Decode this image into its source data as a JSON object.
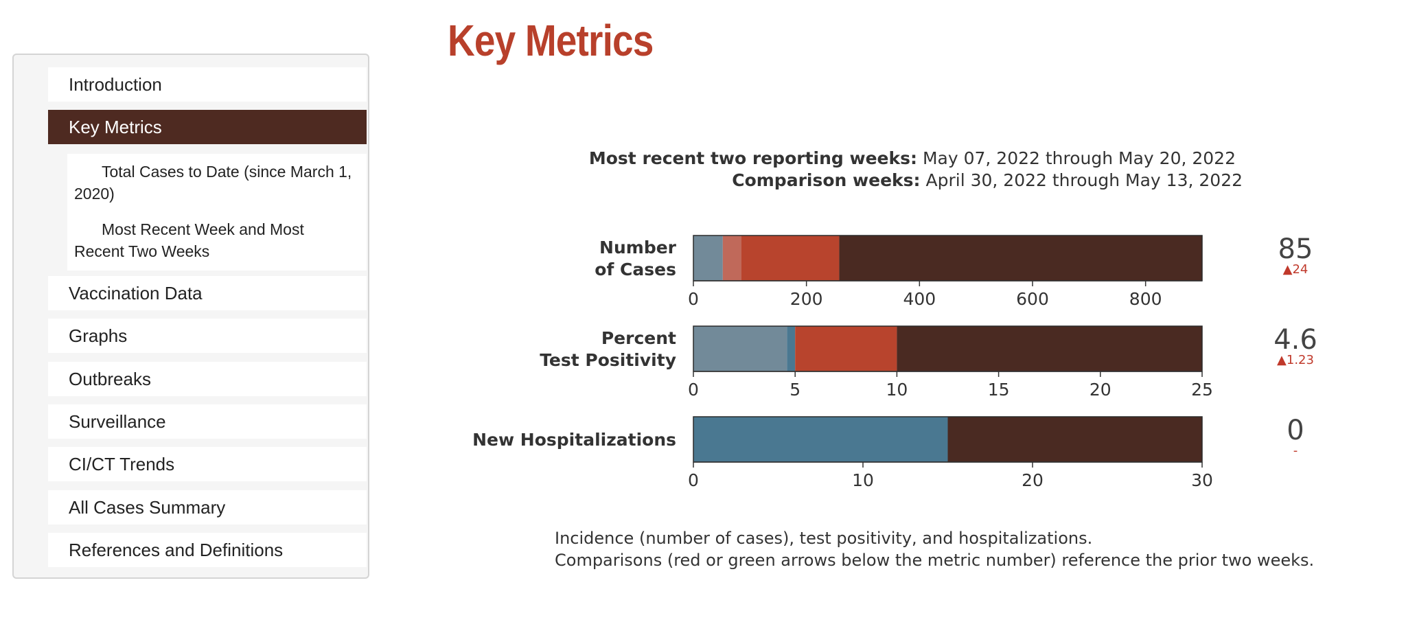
{
  "sidebar": {
    "items": [
      {
        "label": "Introduction"
      },
      {
        "label": "Key Metrics",
        "active": true
      },
      {
        "label": "Vaccination Data"
      },
      {
        "label": "Graphs"
      },
      {
        "label": "Outbreaks"
      },
      {
        "label": "Surveillance"
      },
      {
        "label": "CI/CT Trends"
      },
      {
        "label": "All Cases Summary"
      },
      {
        "label": "References and Definitions"
      }
    ],
    "subitems": [
      {
        "line1": "Total Cases to Date (since March 1,",
        "line2": "2020)"
      },
      {
        "line1": "Most Recent Week and Most",
        "line2": "Recent Two Weeks"
      }
    ]
  },
  "page": {
    "title": "Key Metrics"
  },
  "weeks": {
    "recent_label": "Most recent two reporting weeks:",
    "recent_value": "May 07, 2022 through May 20, 2022",
    "comparison_label": "Comparison weeks:",
    "comparison_value": "April 30, 2022 through May 13, 2022"
  },
  "chart_data": {
    "type": "bar",
    "orientation": "horizontal",
    "panels": [
      {
        "label_lines": [
          "Number",
          "of Cases"
        ],
        "xlim": [
          0,
          900
        ],
        "ticks": [
          0,
          200,
          400,
          600,
          800
        ],
        "segments": [
          {
            "from": 0,
            "to": 52,
            "color": "#728a99"
          },
          {
            "from": 52,
            "to": 85,
            "color": "#c0695a"
          },
          {
            "from": 85,
            "to": 258,
            "color": "#b8442d"
          },
          {
            "from": 258,
            "to": 900,
            "color": "#4a2a22"
          }
        ],
        "metric": "85",
        "change": "▲24"
      },
      {
        "label_lines": [
          "Percent",
          "Test Positivity"
        ],
        "xlim": [
          0,
          25
        ],
        "ticks": [
          0,
          5,
          10,
          15,
          20,
          25
        ],
        "segments": [
          {
            "from": 0,
            "to": 4.6,
            "color": "#728a99"
          },
          {
            "from": 4.6,
            "to": 5,
            "color": "#4a7891"
          },
          {
            "from": 5,
            "to": 10,
            "color": "#b8442d"
          },
          {
            "from": 10,
            "to": 25,
            "color": "#4a2a22"
          }
        ],
        "metric": "4.6",
        "change": "▲1.23"
      },
      {
        "label_lines": [
          "New Hospitalizations"
        ],
        "xlim": [
          0,
          30
        ],
        "ticks": [
          0,
          10,
          20,
          30
        ],
        "segments": [
          {
            "from": 0,
            "to": 15,
            "color": "#4a7891"
          },
          {
            "from": 15,
            "to": 30,
            "color": "#4a2a22"
          }
        ],
        "metric": "0",
        "change": "-"
      }
    ]
  },
  "colors": {
    "change": "#c0392b",
    "metric": "#444444",
    "axis": "#333333"
  },
  "caption": {
    "line1": "Incidence (number of cases), test positivity, and hospitalizations.",
    "line2": "Comparisons (red or green arrows below the metric number) reference the prior two weeks."
  }
}
